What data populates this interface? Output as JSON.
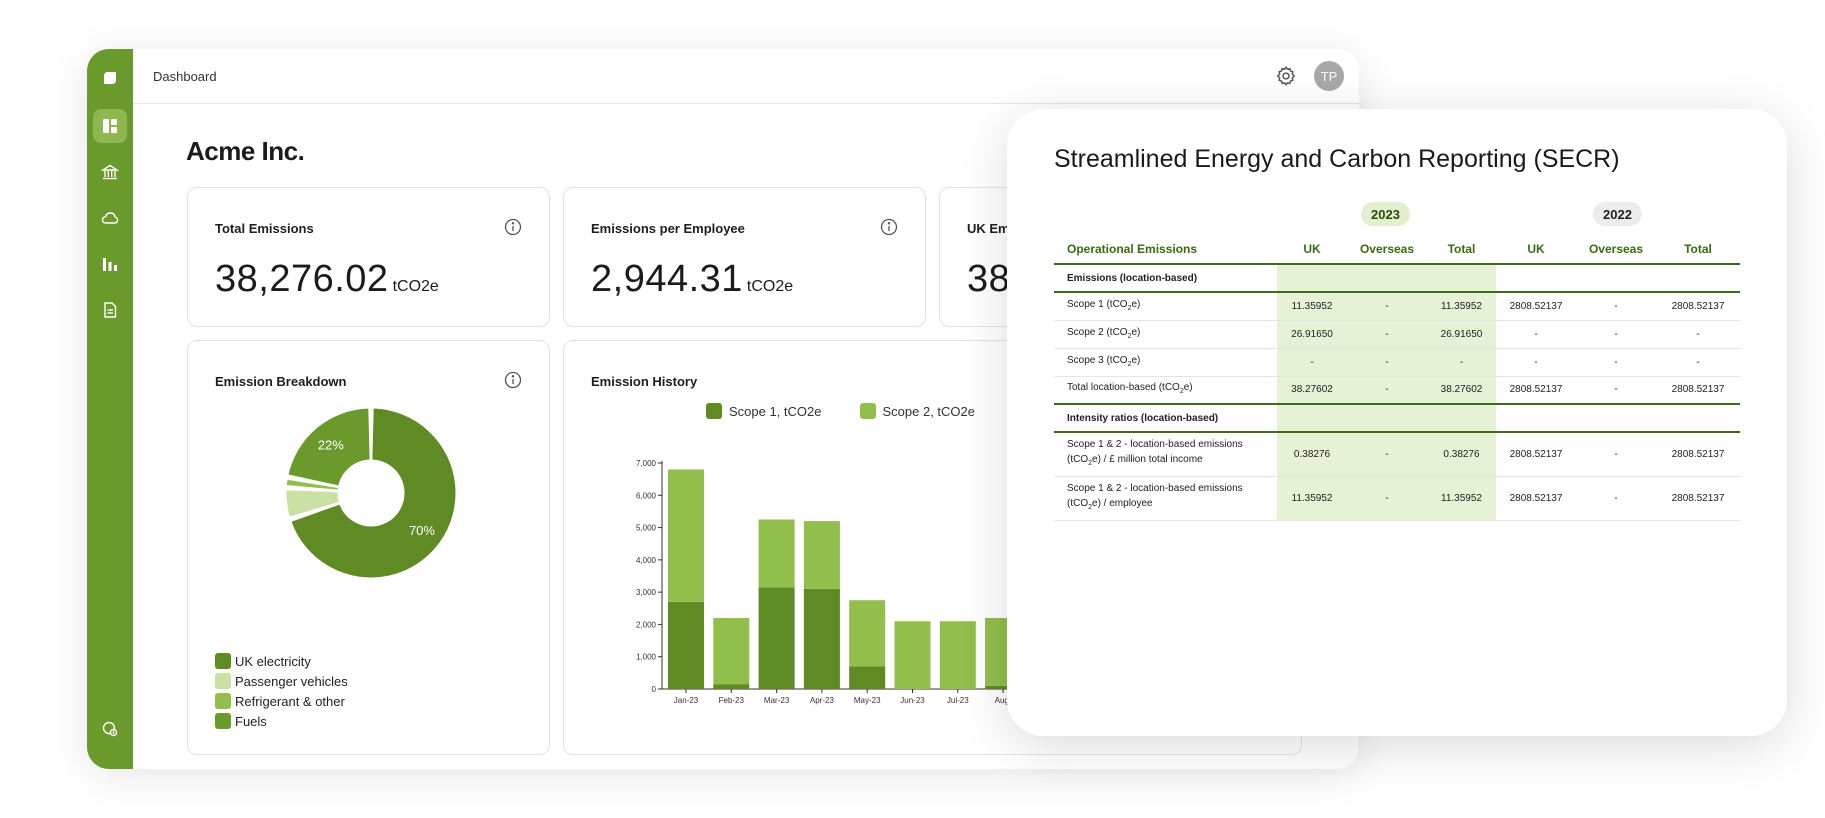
{
  "topbar": {
    "breadcrumb": "Dashboard",
    "avatar_initials": "TP"
  },
  "sidebar": {
    "items": [
      "logo",
      "dashboard",
      "bank",
      "cloud",
      "reports",
      "document"
    ],
    "active": "dashboard"
  },
  "page": {
    "title": "Acme Inc."
  },
  "metrics": [
    {
      "label": "Total Emissions",
      "value": "38,276.02",
      "unit": "tCO2e"
    },
    {
      "label": "Emissions per Employee",
      "value": "2,944.31",
      "unit": "tCO2e"
    },
    {
      "label": "UK Em",
      "value": "38"
    }
  ],
  "breakdown": {
    "title": "Emission Breakdown",
    "legend": [
      "UK electricity",
      "Passenger vehicles",
      "Refrigerant & other",
      "Fuels"
    ],
    "colors": [
      "#5f8a24",
      "#c9e1a5",
      "#92be4c",
      "#6a9a2b"
    ],
    "chart_data": {
      "type": "pie",
      "categories": [
        "UK electricity",
        "Passenger vehicles",
        "Refrigerant & other",
        "Fuels"
      ],
      "values": [
        70,
        6,
        2,
        22
      ],
      "labels": [
        "70%",
        "",
        "",
        "22%"
      ]
    }
  },
  "history": {
    "title": "Emission History",
    "series_names": [
      "Scope 1, tCO2e",
      "Scope 2, tCO2e"
    ],
    "colors": {
      "scope1": "#5f8a24",
      "scope2": "#92be4c"
    },
    "chart_data": {
      "type": "bar",
      "stacked": true,
      "categories": [
        "Jan-23",
        "Feb-23",
        "Mar-23",
        "Apr-23",
        "May-23",
        "Jun-23",
        "Jul-23",
        "Aug-"
      ],
      "series": [
        {
          "name": "Scope 1, tCO2e",
          "values": [
            2700,
            150,
            3150,
            3100,
            700,
            0,
            0,
            100
          ]
        },
        {
          "name": "Scope 2, tCO2e",
          "values": [
            4100,
            2050,
            2100,
            2100,
            2050,
            2100,
            2100,
            2100
          ]
        }
      ],
      "yticks": [
        "0",
        "1,000",
        "2,000",
        "3,000",
        "4,000",
        "5,000",
        "6,000",
        "7,000"
      ],
      "ylim": [
        0,
        7000
      ]
    }
  },
  "secr": {
    "title": "Streamlined Energy and Carbon Reporting (SECR)",
    "years": [
      "2023",
      "2022"
    ],
    "headers": [
      "Operational Emissions",
      "UK",
      "Overseas",
      "Total",
      "UK",
      "Overseas",
      "Total"
    ],
    "section1": "Emissions (location-based)",
    "rows1": [
      {
        "label_pre": "Scope 1 (tCO",
        "label_sub": "2",
        "label_post": "e)",
        "cells": [
          "11.35952",
          "-",
          "11.35952",
          "2808.52137",
          "-",
          "2808.52137"
        ]
      },
      {
        "label_pre": "Scope 2 (tCO",
        "label_sub": "2",
        "label_post": "e)",
        "cells": [
          "26.91650",
          "-",
          "26.91650",
          "-",
          "-",
          "-"
        ]
      },
      {
        "label_pre": "Scope 3 (tCO",
        "label_sub": "2",
        "label_post": "e)",
        "cells": [
          "-",
          "-",
          "-",
          "-",
          "-",
          "-"
        ]
      },
      {
        "label_pre": "Total location-based (tCO",
        "label_sub": "2",
        "label_post": "e)",
        "cells": [
          "38.27602",
          "-",
          "38.27602",
          "2808.52137",
          "-",
          "2808.52137"
        ]
      }
    ],
    "section2": "Intensity ratios (location-based)",
    "rows2": [
      {
        "line1": "Scope 1 & 2 - location-based emissions",
        "line2_pre": "(tCO",
        "line2_sub": "2",
        "line2_post": "e) / £ million total income",
        "cells": [
          "0.38276",
          "-",
          "0.38276",
          "2808.52137",
          "-",
          "2808.52137"
        ]
      },
      {
        "line1": "Scope 1 & 2 - location-based emissions",
        "line2_pre": "(tCO",
        "line2_sub": "2",
        "line2_post": "e) / employee",
        "cells": [
          "11.35952",
          "-",
          "11.35952",
          "2808.52137",
          "-",
          "2808.52137"
        ]
      }
    ]
  }
}
